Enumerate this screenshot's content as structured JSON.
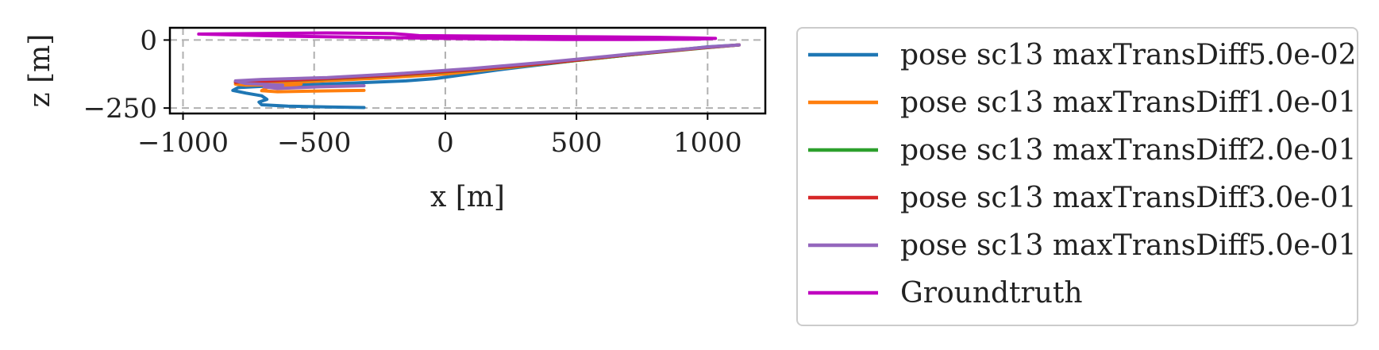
{
  "chart_data": {
    "type": "line",
    "xlabel": "x [m]",
    "ylabel": "z [m]",
    "xlim": [
      -1050,
      1220
    ],
    "ylim": [
      -270,
      45
    ],
    "xticks": [
      -1000,
      -500,
      0,
      500,
      1000
    ],
    "xtick_labels": [
      "−1000",
      "−500",
      "0",
      "500",
      "1000"
    ],
    "yticks": [
      0,
      -250
    ],
    "ytick_labels": [
      "0",
      "−250"
    ],
    "grid": true,
    "legend_position": "outside-right",
    "series": [
      {
        "name": "pose sc13 maxTransDiff5.0e-02",
        "color": "#1f77b4",
        "x": [
          -310,
          -450,
          -600,
          -700,
          -710,
          -680,
          -700,
          -760,
          -810,
          -790,
          -650,
          -400,
          -150,
          -40,
          200,
          500,
          800,
          1000,
          1120
        ],
        "y": [
          -248,
          -246,
          -243,
          -238,
          -228,
          -218,
          -205,
          -195,
          -185,
          -175,
          -168,
          -160,
          -150,
          -142,
          -110,
          -75,
          -45,
          -25,
          -18
        ]
      },
      {
        "name": "pose sc13 maxTransDiff1.0e-01",
        "color": "#ff7f0e",
        "x": [
          -310,
          -400,
          -520,
          -640,
          -700,
          -680,
          -620,
          -550,
          -650,
          -760,
          -800,
          -700,
          -500,
          -250,
          0,
          300,
          600,
          900,
          1120
        ],
        "y": [
          -185,
          -186,
          -188,
          -190,
          -186,
          -175,
          -168,
          -162,
          -164,
          -166,
          -162,
          -160,
          -152,
          -140,
          -125,
          -95,
          -65,
          -35,
          -18
        ]
      },
      {
        "name": "pose sc13 maxTransDiff2.0e-01",
        "color": "#2ca02c",
        "x": [
          -800,
          -500,
          -200,
          100,
          400,
          700,
          1000,
          1120
        ],
        "y": [
          -155,
          -145,
          -130,
          -110,
          -85,
          -55,
          -28,
          -18
        ]
      },
      {
        "name": "pose sc13 maxTransDiff3.0e-01",
        "color": "#d62728",
        "x": [
          -800,
          -500,
          -200,
          100,
          400,
          700,
          1000,
          1120
        ],
        "y": [
          -155,
          -144,
          -129,
          -109,
          -84,
          -54,
          -27,
          -18
        ]
      },
      {
        "name": "pose sc13 maxTransDiff5.0e-01",
        "color": "#9467bd",
        "x": [
          -310,
          -480,
          -640,
          -690,
          -620,
          -760,
          -800,
          -700,
          -450,
          -200,
          100,
          400,
          700,
          1000,
          1120
        ],
        "y": [
          -168,
          -172,
          -178,
          -172,
          -166,
          -160,
          -150,
          -145,
          -138,
          -125,
          -105,
          -80,
          -52,
          -26,
          -18
        ]
      },
      {
        "name": "Groundtruth",
        "color": "#c000c0",
        "x": [
          -940,
          -700,
          -450,
          -200,
          -100,
          200,
          500,
          800,
          950,
          1030,
          950,
          700,
          450,
          200,
          0,
          -300,
          -600,
          -850,
          -940
        ],
        "y": [
          22,
          24,
          26,
          24,
          16,
          14,
          12,
          10,
          8,
          6,
          3,
          2,
          2,
          4,
          6,
          10,
          14,
          20,
          22
        ]
      }
    ]
  }
}
